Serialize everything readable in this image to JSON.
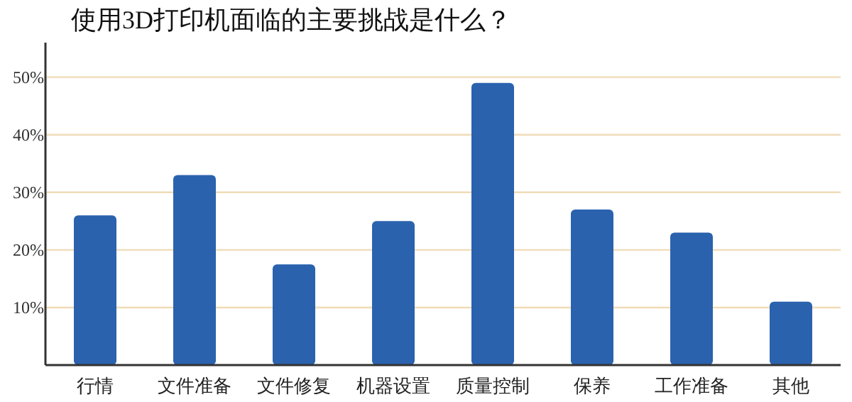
{
  "chart_data": {
    "type": "bar",
    "title": "使用3D打印机面临的主要挑战是什么？",
    "categories": [
      "行情",
      "文件准备",
      "文件修复",
      "机器设置",
      "质量控制",
      "保养",
      "工作准备",
      "其他"
    ],
    "series": [
      {
        "color": "#2a62ae",
        "values": [
          26,
          33,
          17.5,
          25,
          49,
          27,
          23,
          11
        ]
      }
    ],
    "ylim": [
      0,
      56
    ],
    "yticks": [
      {
        "value": 10,
        "label": "10%"
      },
      {
        "value": 20,
        "label": "20%"
      },
      {
        "value": 30,
        "label": "30%"
      },
      {
        "value": 40,
        "label": "40%"
      },
      {
        "value": 50,
        "label": "50%"
      }
    ],
    "grid": "y"
  }
}
